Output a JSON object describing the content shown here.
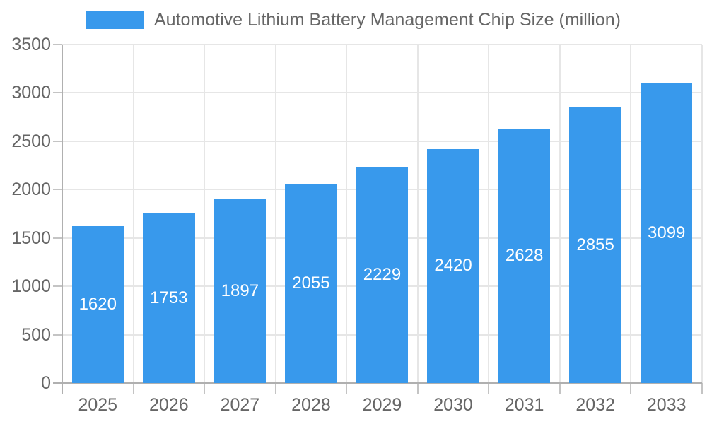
{
  "chart_data": {
    "type": "bar",
    "title": "Automotive Lithium Battery Management Chip Size (million)",
    "categories": [
      "2025",
      "2026",
      "2027",
      "2028",
      "2029",
      "2030",
      "2031",
      "2032",
      "2033"
    ],
    "values": [
      1620,
      1753,
      1897,
      2055,
      2229,
      2420,
      2628,
      2855,
      3099
    ],
    "xlabel": "",
    "ylabel": "",
    "ylim": [
      0,
      3500
    ],
    "ytick_step": 500,
    "ytick_labels": [
      "0",
      "500",
      "1000",
      "1500",
      "2000",
      "2500",
      "3000",
      "3500"
    ],
    "grid": "both",
    "legend_position": "top-center",
    "colors": {
      "bar": "#3899ec",
      "value_label": "#ffffff",
      "axis_text": "#666666",
      "gridline": "#e6e6e6",
      "axis_line": "#b0b0b0",
      "background": "#ffffff"
    }
  }
}
